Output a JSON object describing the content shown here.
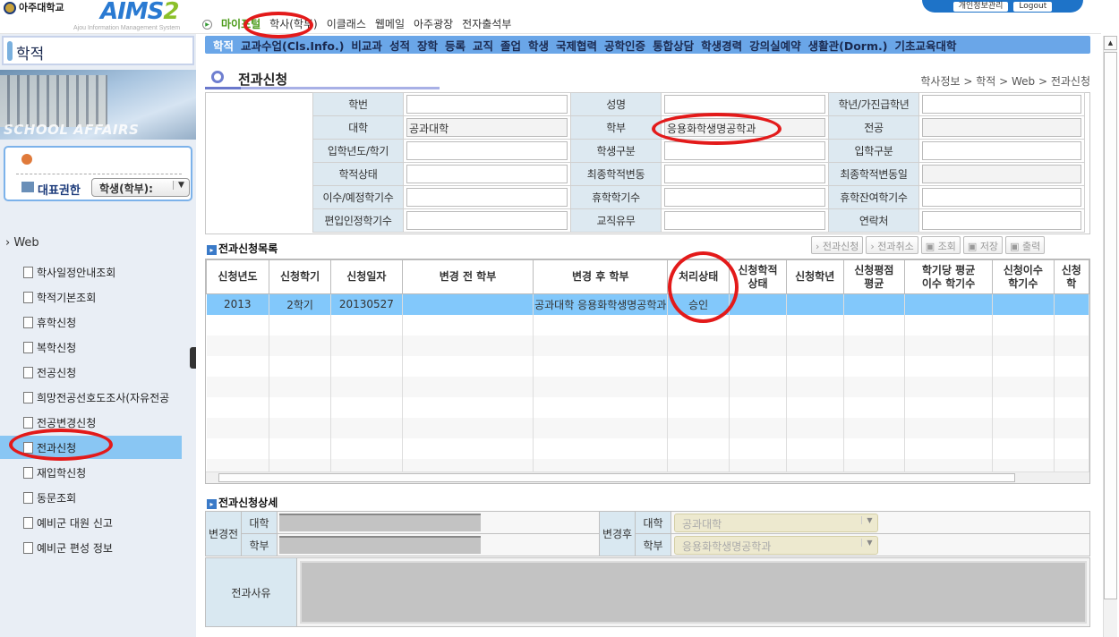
{
  "header": {
    "university": "아주대학교",
    "app": "AIMS",
    "app_version": "2",
    "app_subtitle": "Ajou Information Management System",
    "top_nav": [
      "마이포털",
      "학사(학부)",
      "이클래스",
      "웹메일",
      "아주광장",
      "전자출석부"
    ],
    "privacy_button": "개인정보관리",
    "logout_button": "Logout"
  },
  "sidebar": {
    "title": "학적",
    "banner": "SCHOOL AFFAIRS",
    "role_label": "대표권한",
    "role_value": "학생(학부):",
    "tree_root": "Web",
    "items": [
      "학사일정안내조회",
      "학적기본조회",
      "휴학신청",
      "복학신청",
      "전공신청",
      "희망전공선호도조사(자유전공",
      "전공변경신청",
      "전과신청",
      "재입학신청",
      "동문조회",
      "예비군 대원 신고",
      "예비군 편성 정보"
    ],
    "selected_index": 7
  },
  "menu": [
    "학적",
    "교과수업(Cls.Info.)",
    "비교과",
    "성적",
    "장학",
    "등록",
    "교직",
    "졸업",
    "학생",
    "국제협력",
    "공학인증",
    "통합상담",
    "학생경력",
    "강의실예약",
    "생활관(Dorm.)",
    "기초교육대학"
  ],
  "page": {
    "title": "전과신청",
    "breadcrumb": "학사정보 > 학적 > Web > 전과신청"
  },
  "info": [
    [
      "학번",
      "",
      "성명",
      "",
      "학년/가진급학년",
      ""
    ],
    [
      "대학",
      "공과대학",
      "학부",
      "응용화학생명공학과",
      "전공",
      ""
    ],
    [
      "입학년도/학기",
      "",
      "학생구분",
      "",
      "입학구분",
      ""
    ],
    [
      "학적상태",
      "",
      "최종학적변동",
      "",
      "최종학적변동일",
      ""
    ],
    [
      "이수/예정학기수",
      "",
      "휴학학기수",
      "",
      "휴학잔여학기수",
      ""
    ],
    [
      "편입인정학기수",
      "",
      "교직유무",
      "",
      "연락처",
      ""
    ]
  ],
  "list": {
    "title": "전과신청목록",
    "buttons": [
      "전과신청",
      "전과취소",
      "조회",
      "저장",
      "출력"
    ],
    "columns": [
      "신청년도",
      "신청학기",
      "신청일자",
      "변경 전 학부",
      "변경 후 학부",
      "처리상태",
      "신청학적\n상태",
      "신청학년",
      "신청평점\n평균",
      "학기당 평균\n이수 학기수",
      "신청이수\n학기수",
      "신청\n학"
    ],
    "rows": [
      [
        "2013",
        "2학기",
        "20130527",
        "",
        "공과대학 응용화학생명공학과",
        "승인",
        "",
        "",
        "",
        "",
        "",
        ""
      ]
    ]
  },
  "detail": {
    "title": "전과신청상세",
    "before_label": "변경전",
    "after_label": "변경후",
    "college_label": "대학",
    "dept_label": "학부",
    "after_college": "공과대학",
    "after_dept": "응용화학생명공학과",
    "reason_label": "전과사유"
  },
  "annotation_color": "#e31a1a"
}
